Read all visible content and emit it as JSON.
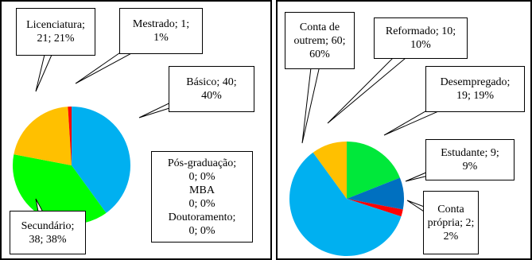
{
  "chart_data": [
    {
      "type": "pie",
      "values": [
        40,
        38,
        21,
        1,
        0,
        0,
        0
      ],
      "value_labels": [
        "Básico; 40;\n40%",
        "Secundário;\n38; 38%",
        "Licenciatura;\n21; 21%",
        "Mestrado; 1;\n1%",
        "Pós-graduação;\n0; 0%",
        "MBA\n0; 0%",
        "Doutoramento;\n0; 0%"
      ],
      "colors": [
        "#00b0f0",
        "#00ff00",
        "#ffc000",
        "#ff0000",
        "#7030a0",
        "#ffff00",
        "#002060"
      ]
    },
    {
      "type": "pie",
      "values": [
        19,
        9,
        2,
        60,
        10
      ],
      "value_labels": [
        "Desempregado;\n19; 19%",
        "Estudante; 9;\n9%",
        "Conta\nprópria; 2;\n2%",
        "Conta de\noutrem; 60;\n60%",
        "Reformado; 10;\n10%"
      ],
      "colors": [
        "#00e83a",
        "#0070c0",
        "#ff0000",
        "#00b0f0",
        "#ffc000"
      ]
    }
  ]
}
